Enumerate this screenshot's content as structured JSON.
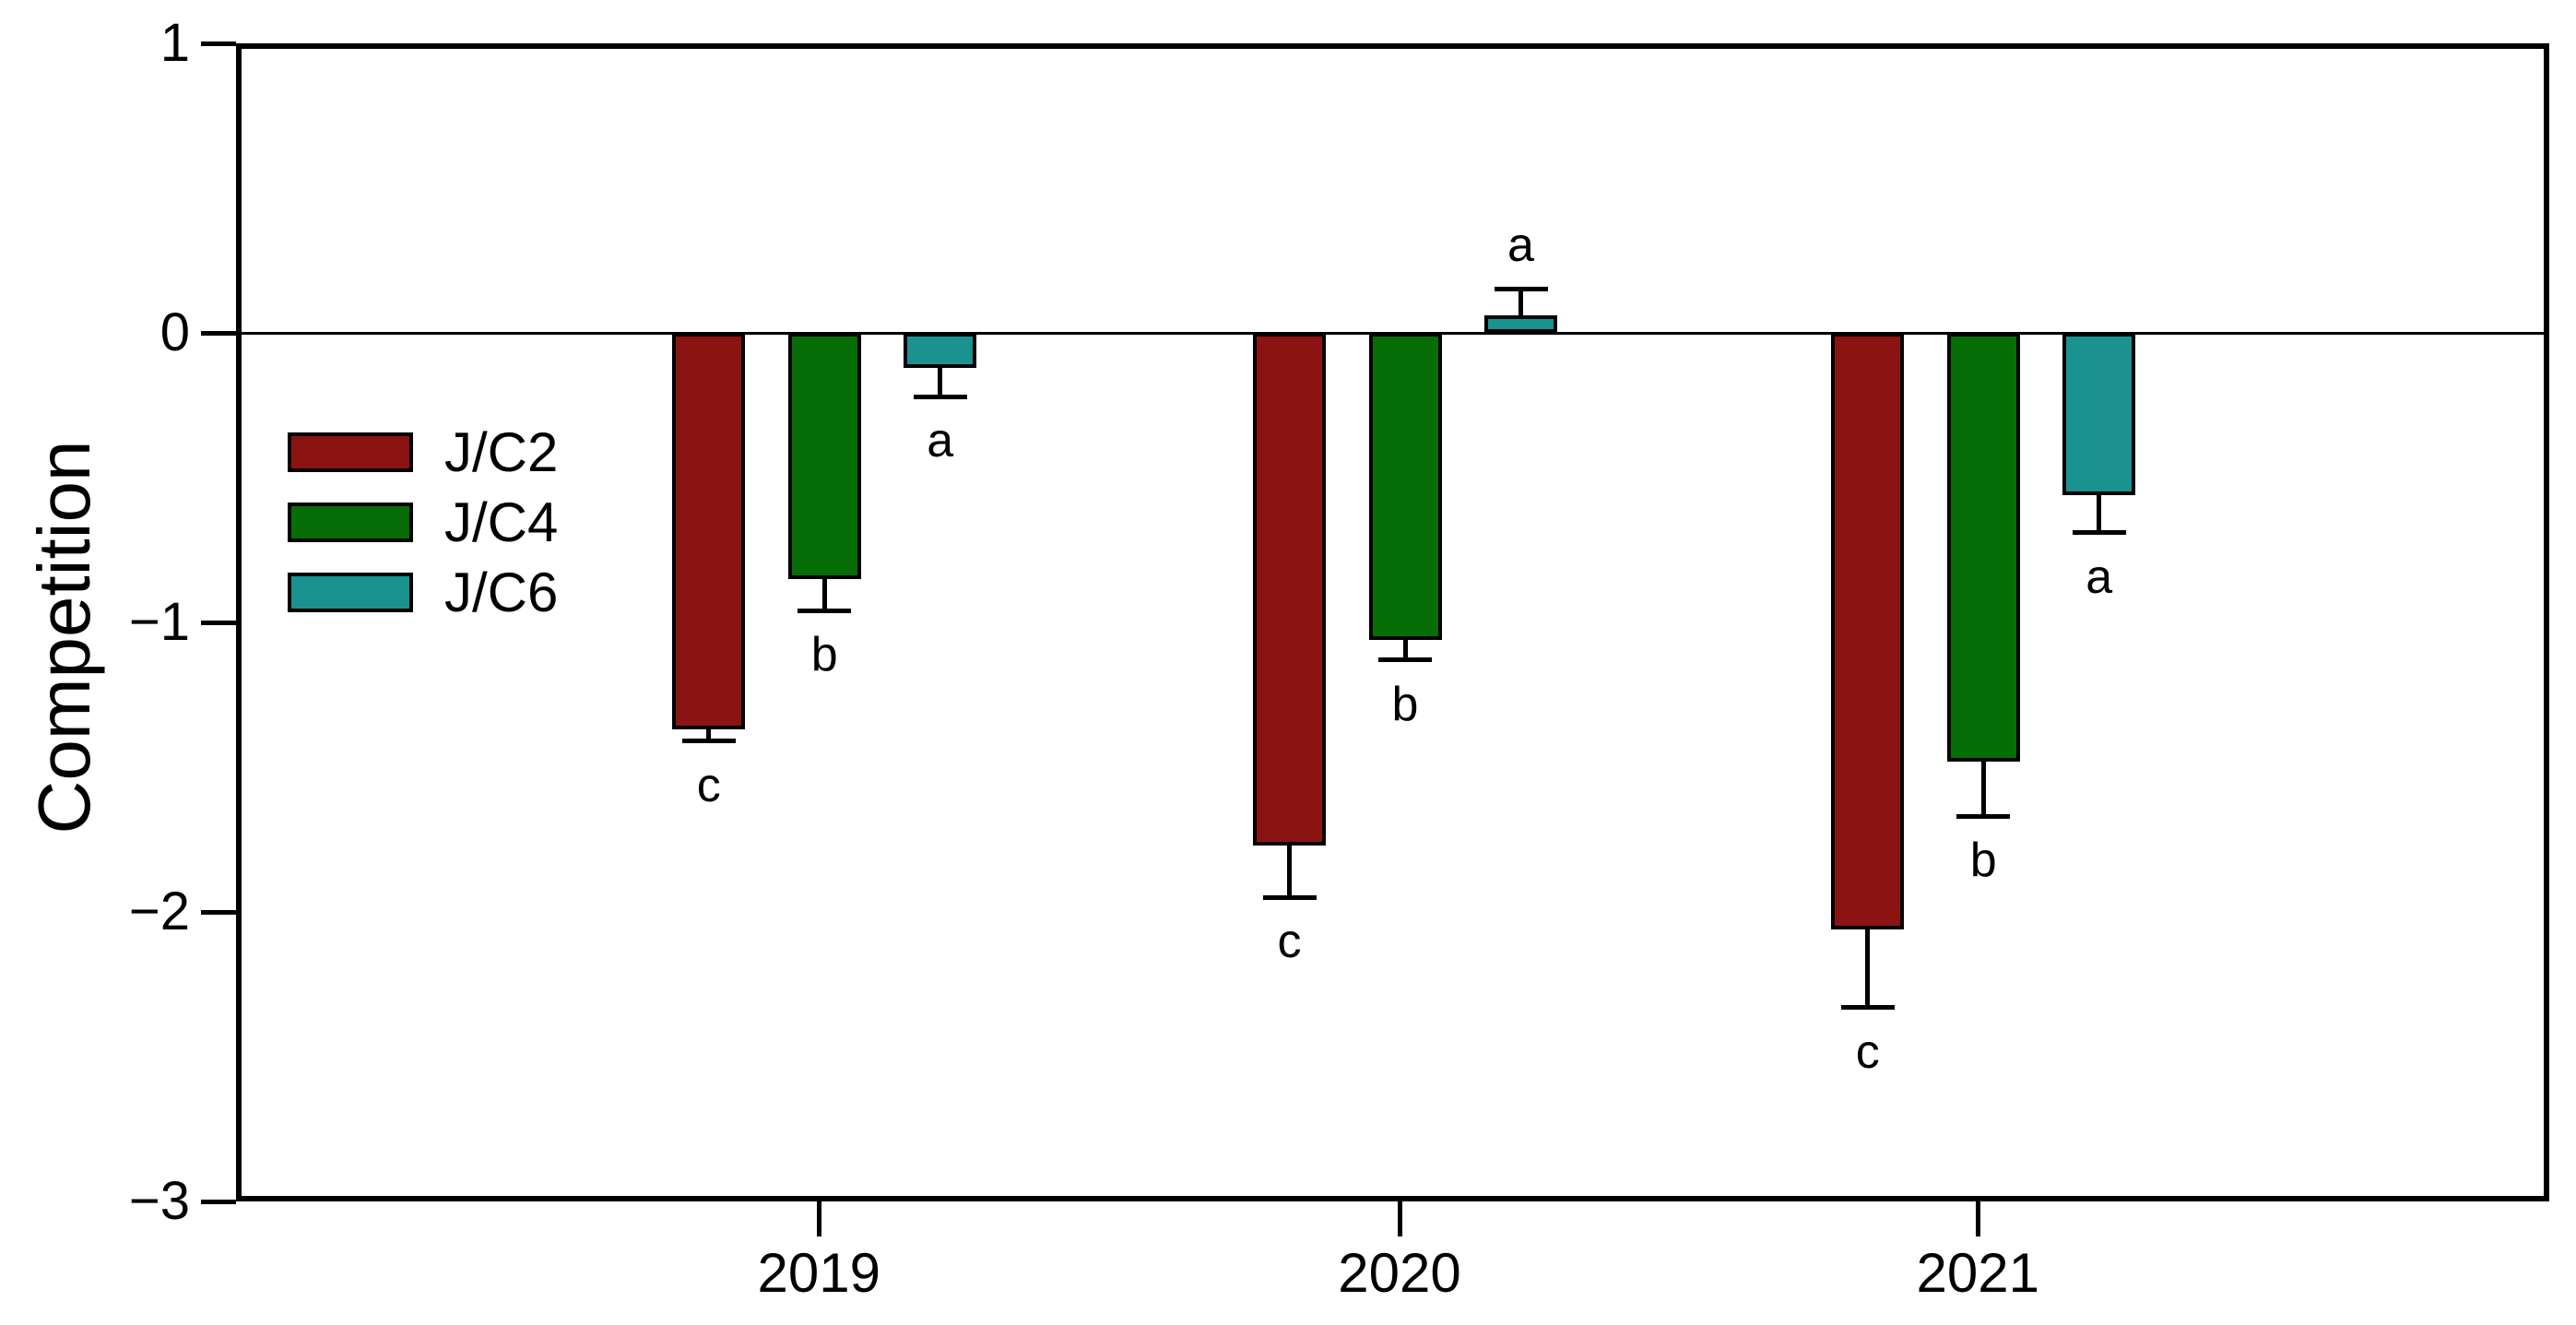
{
  "chart_data": {
    "type": "bar",
    "title": "",
    "ylabel": "Competition",
    "xlabel": "",
    "categories": [
      "2019",
      "2020",
      "2021"
    ],
    "series": [
      {
        "name": "J/C2",
        "color": "#8b1412",
        "values": [
          -1.37,
          -1.77,
          -2.06
        ],
        "errors": [
          0.04,
          0.18,
          0.27
        ],
        "letters": [
          "c",
          "c",
          "c"
        ]
      },
      {
        "name": "J/C4",
        "color": "#076d07",
        "values": [
          -0.85,
          -1.06,
          -1.48
        ],
        "errors": [
          0.11,
          0.07,
          0.19
        ],
        "letters": [
          "b",
          "b",
          "b"
        ]
      },
      {
        "name": "J/C6",
        "color": "#1a9290",
        "values": [
          -0.12,
          0.06,
          -0.56
        ],
        "errors": [
          0.1,
          0.09,
          0.13
        ],
        "letters": [
          "a",
          "a",
          "a"
        ]
      }
    ],
    "ylim": [
      -3,
      1
    ],
    "yticks": [
      1,
      0,
      -1,
      -2,
      -3
    ],
    "ytick_labels": [
      "1",
      "0",
      "−1",
      "−2",
      "−3"
    ],
    "grid": false,
    "zero_line": true,
    "legend_position": "upper-left-inside",
    "error_bars": "one-sided-outward",
    "bar_border_color": "#000000",
    "axis_color": "#000000"
  }
}
